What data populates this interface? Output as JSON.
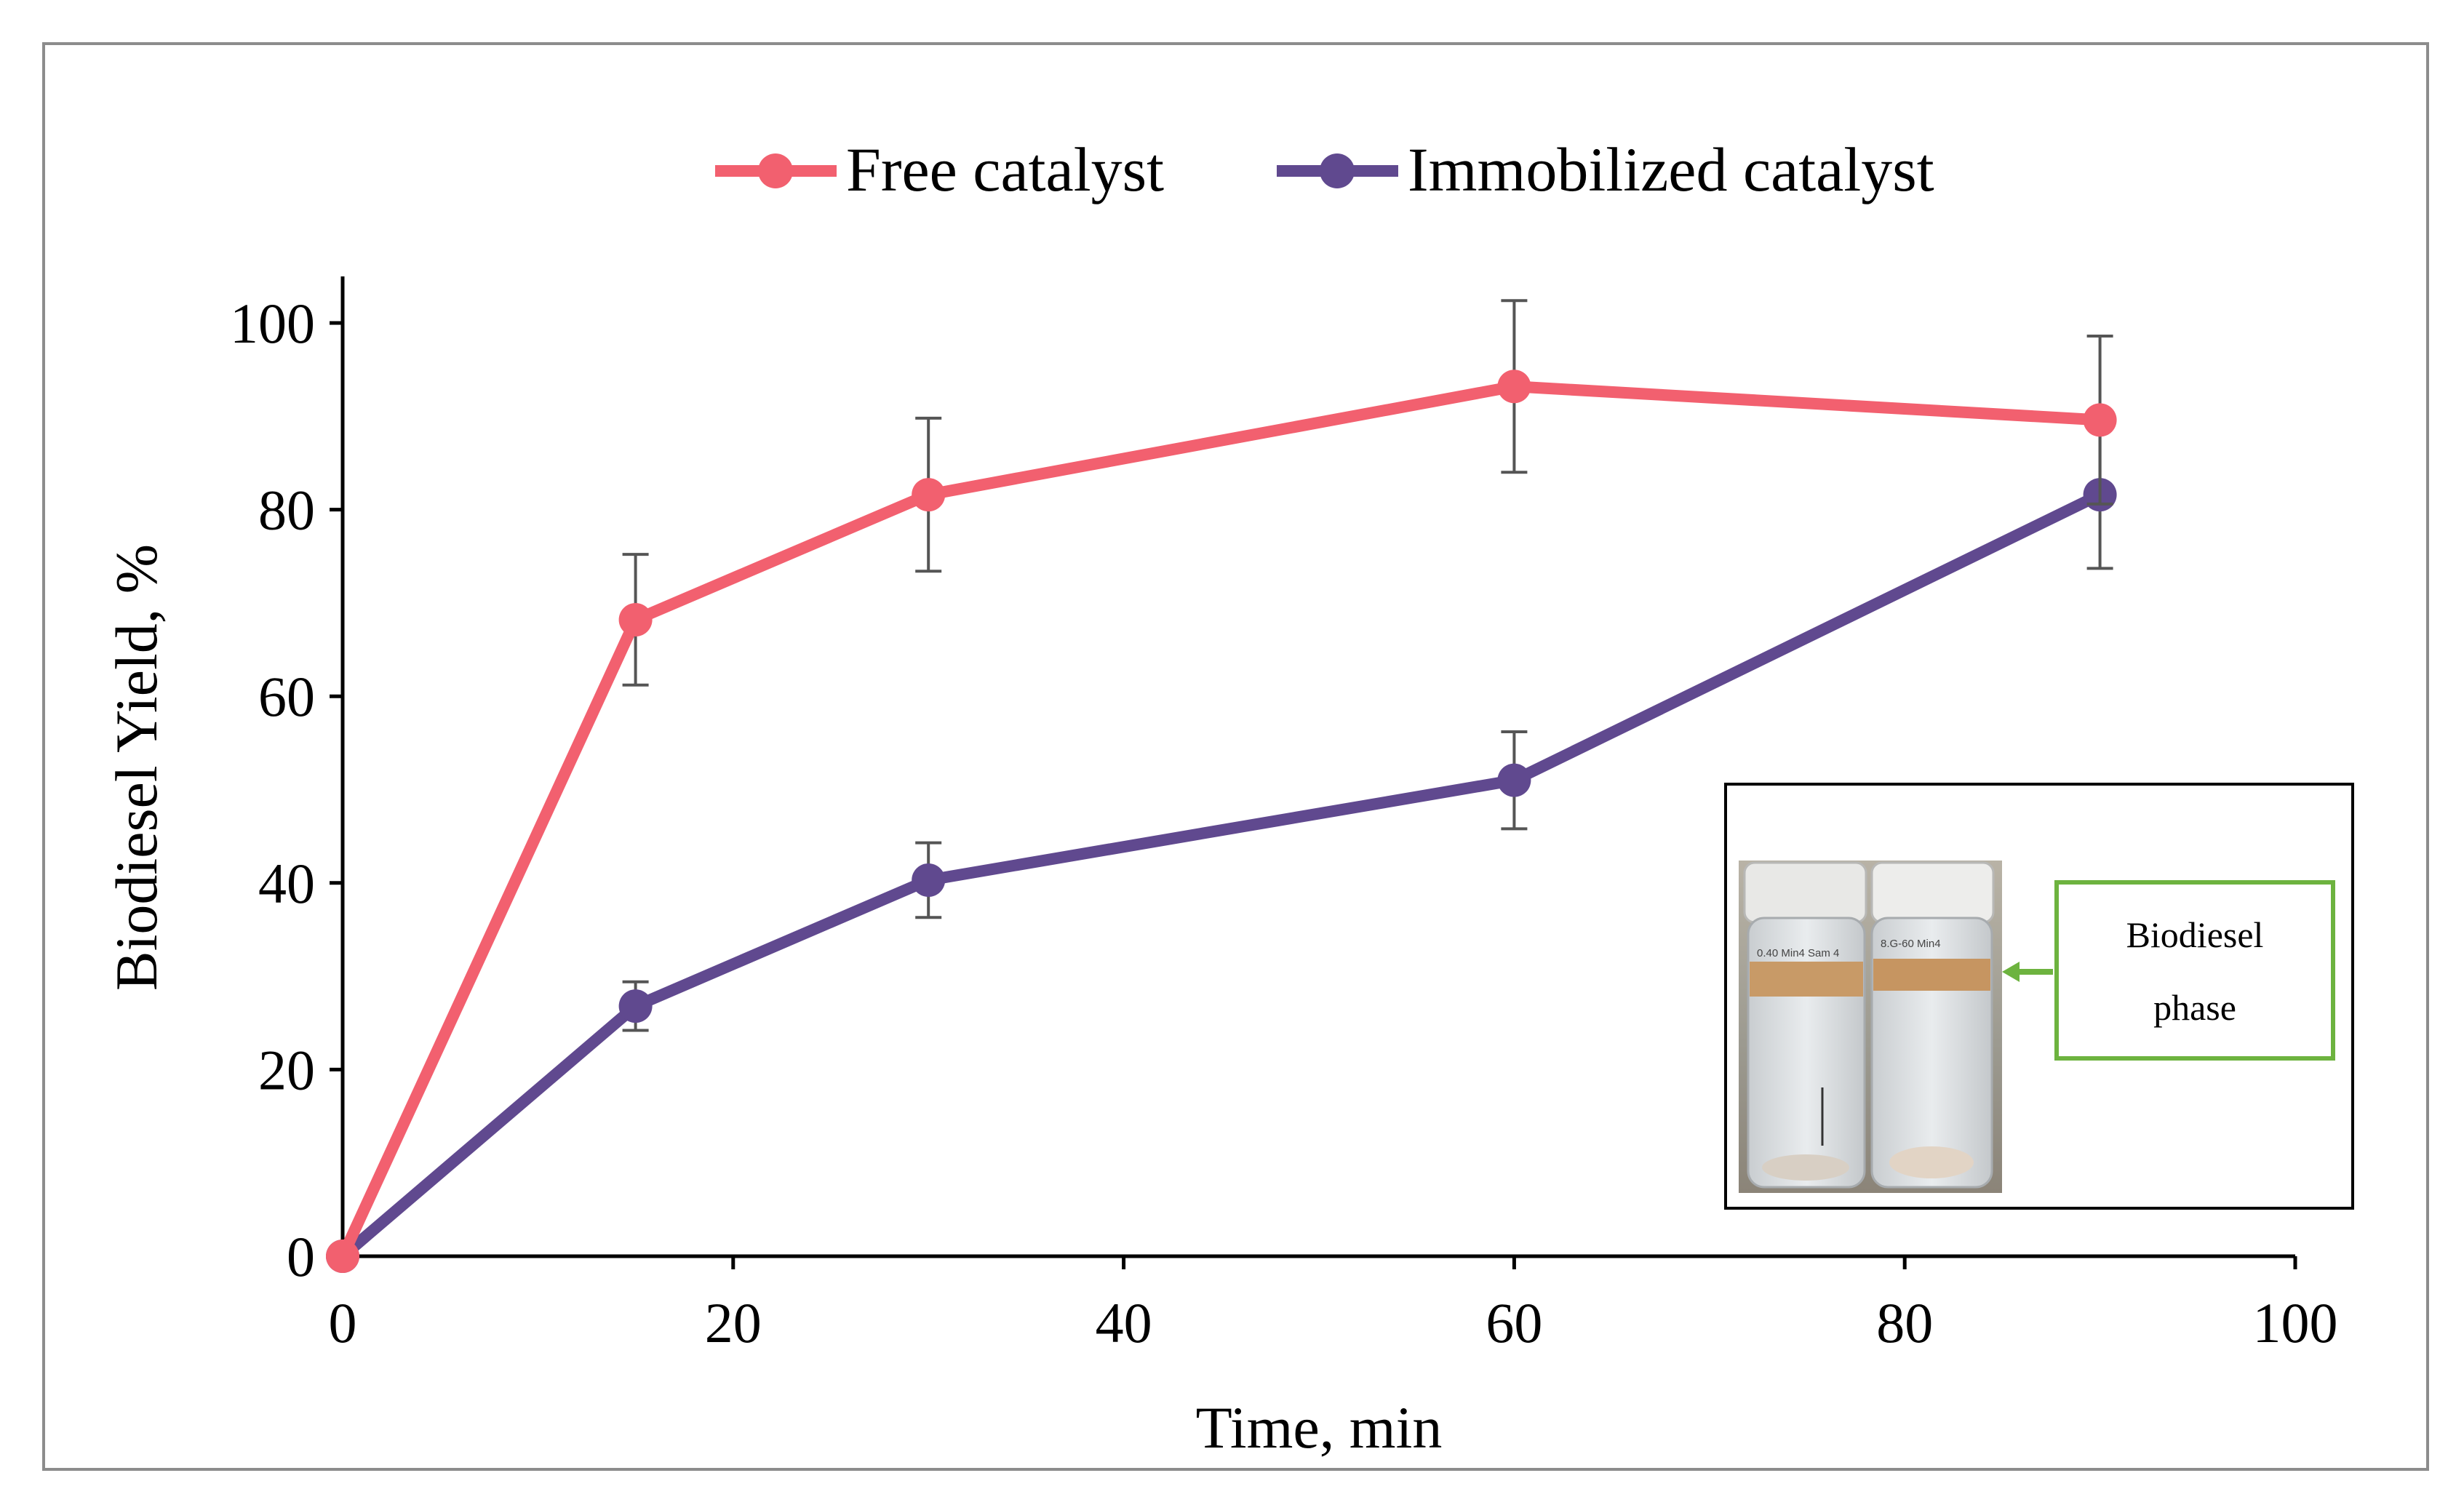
{
  "chart_data": {
    "type": "line",
    "title": "",
    "xlabel": "Time, min",
    "ylabel": "Biodiesel Yield, %",
    "xlim": [
      0,
      100
    ],
    "ylim": [
      0,
      100
    ],
    "xticks": [
      0,
      20,
      40,
      60,
      80,
      100
    ],
    "yticks": [
      0,
      20,
      40,
      60,
      80,
      100
    ],
    "grid": false,
    "legend_position": "top",
    "x": [
      0,
      15,
      30,
      60,
      90
    ],
    "series": [
      {
        "name": "Free catalyst",
        "color": "#F2606F",
        "values": [
          0,
          68.2,
          81.6,
          93.2,
          89.6
        ],
        "errors": [
          0,
          7.0,
          8.2,
          9.2,
          9.0
        ]
      },
      {
        "name": "Immobilized catalyst",
        "color": "#60498F",
        "values": [
          0,
          26.8,
          40.3,
          51.0,
          81.6
        ],
        "errors": [
          0,
          2.6,
          4.0,
          5.2,
          7.9
        ]
      }
    ]
  },
  "inset": {
    "callout_line1": "Biodiesel",
    "callout_line2": "phase",
    "jar_left_label": "0.40 Min4 Sam 4",
    "jar_right_label": "8.G-60 Min4",
    "callout_color": "#6DB33F",
    "frame_color": "#000000"
  }
}
